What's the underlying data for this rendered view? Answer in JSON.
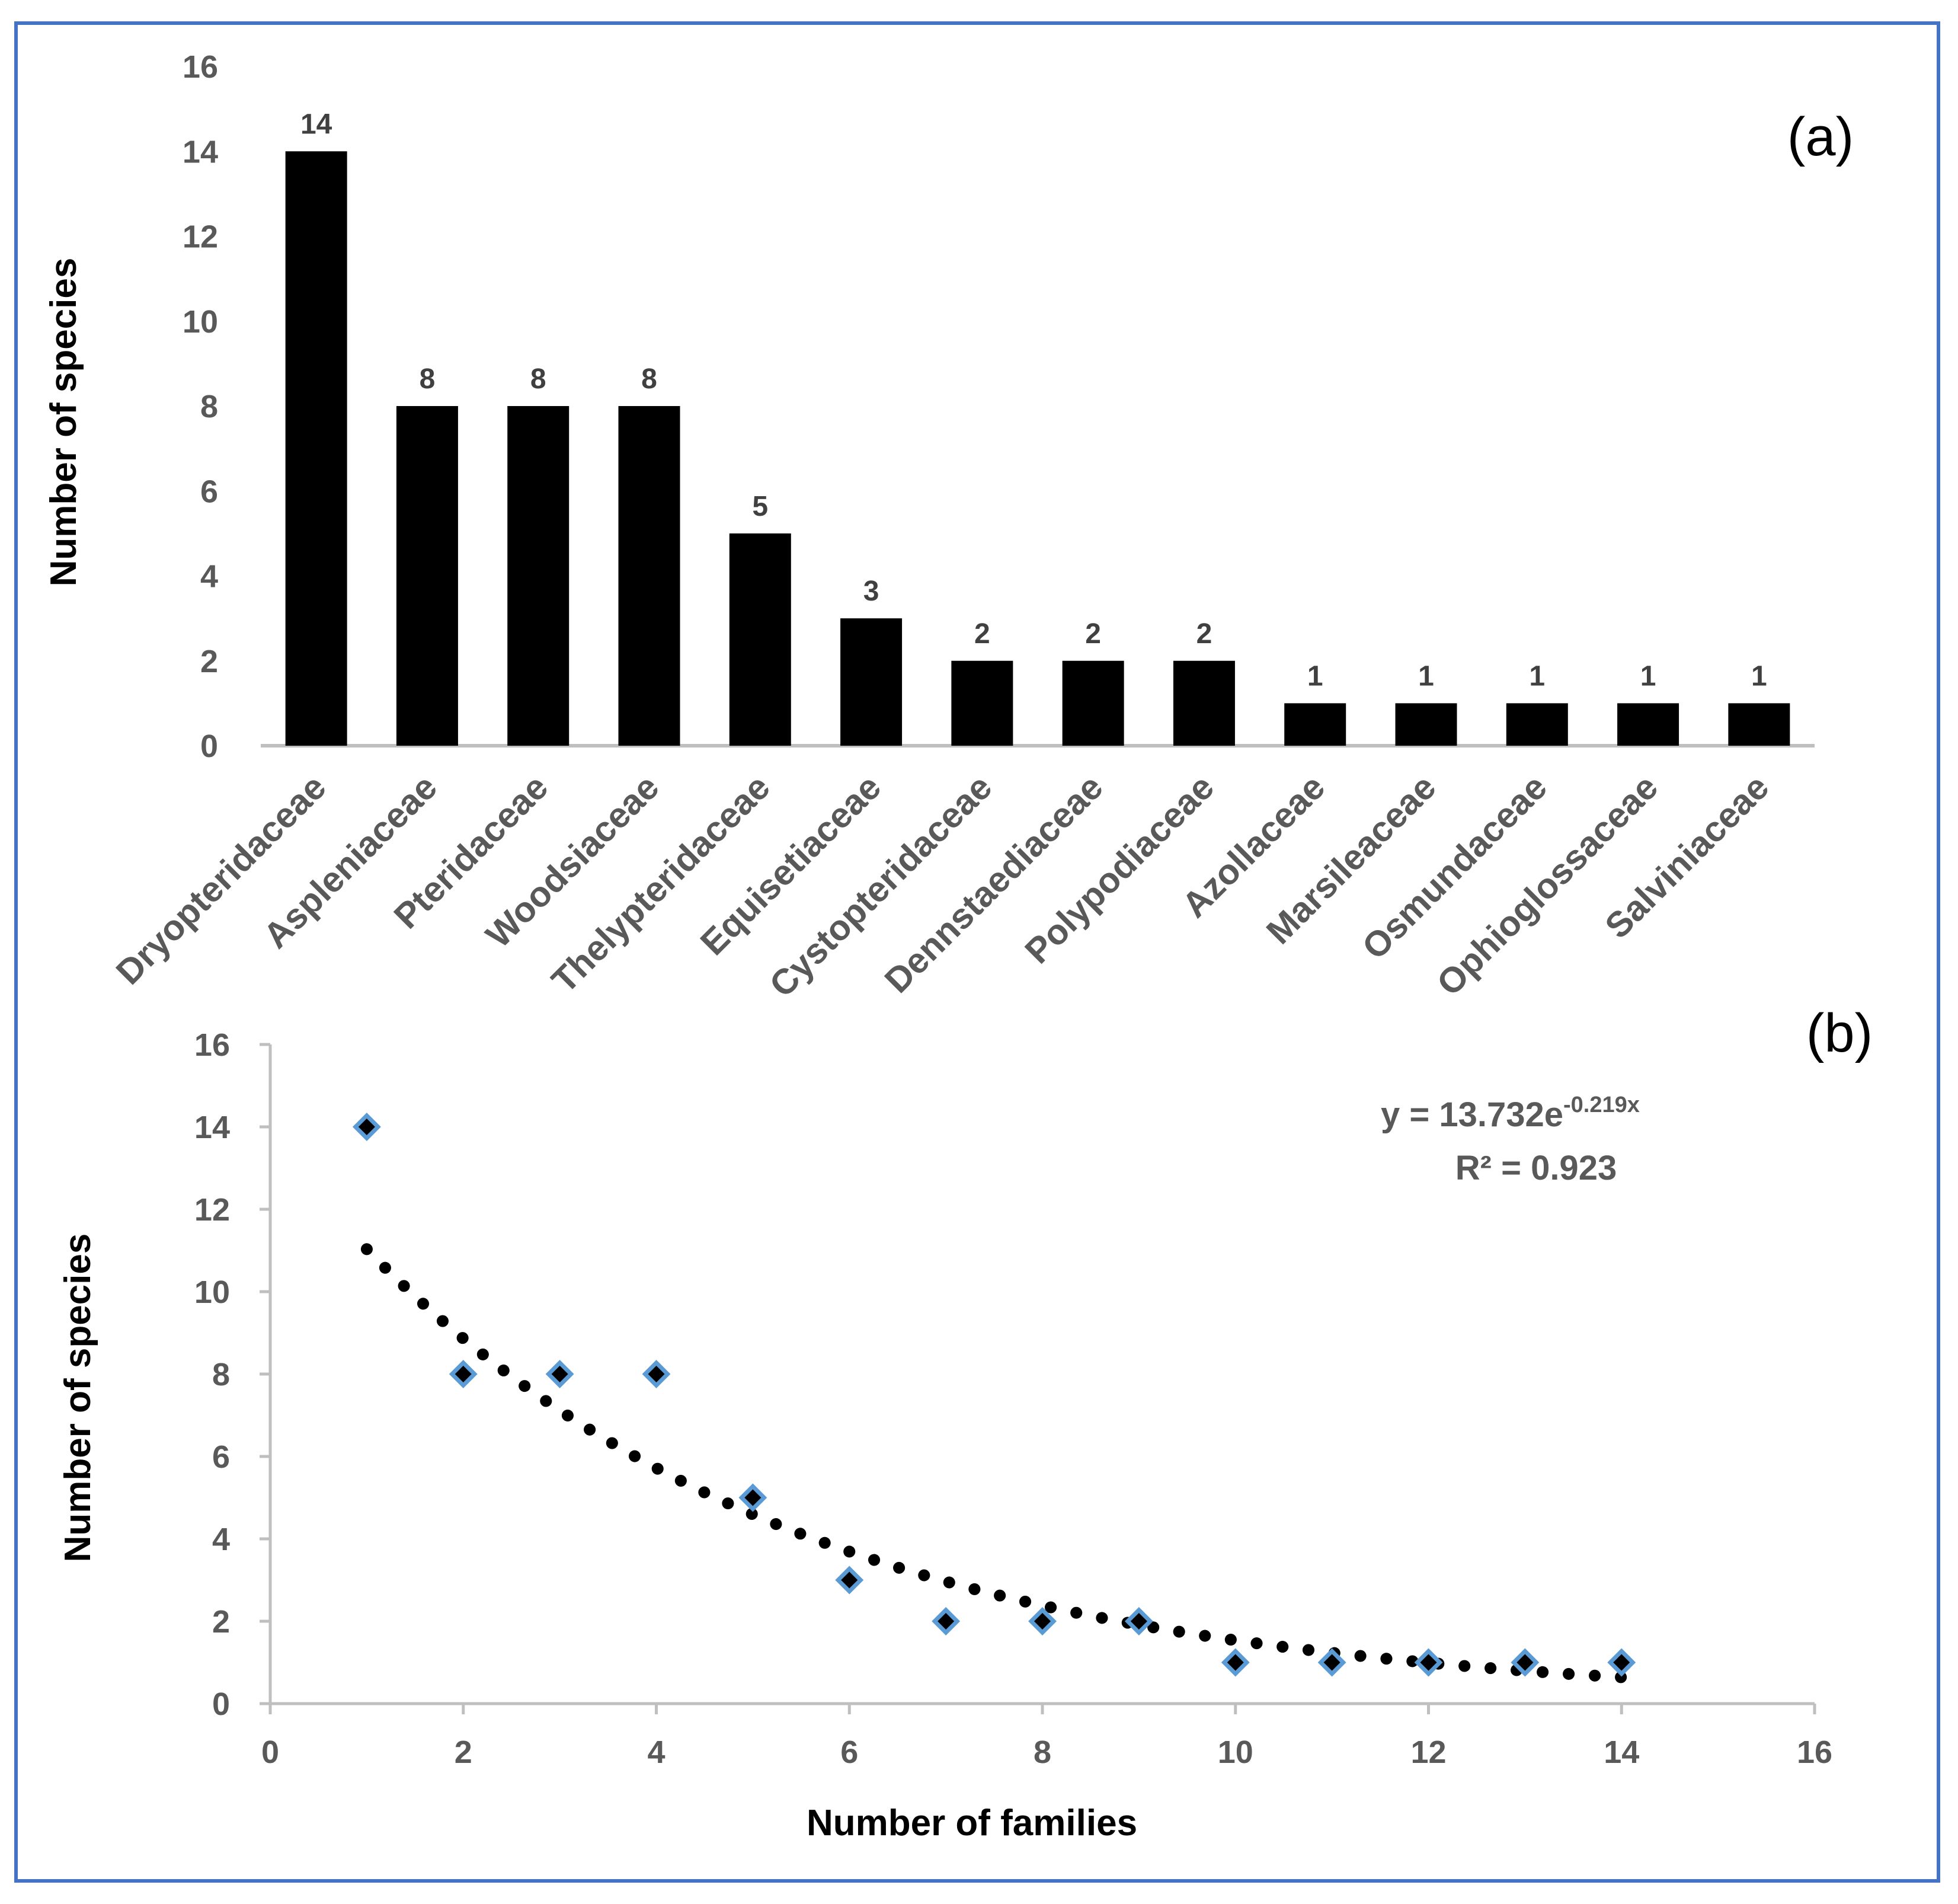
{
  "chart_data": [
    {
      "type": "bar",
      "panel_label": "(a)",
      "ylabel": "Number of species",
      "ylim": [
        0,
        16
      ],
      "yticks": [
        0,
        2,
        4,
        6,
        8,
        10,
        12,
        14,
        16
      ],
      "categories": [
        "Dryopteridaceae",
        "Aspleniaceae",
        "Pteridaceae",
        "Woodsiaceae",
        "Thelypteridaceae",
        "Equisetiaceae",
        "Cystopteridaceae",
        "Dennstaediaceae",
        "Polypodiaceae",
        "Azollaceae",
        "Marsileaceae",
        "Osmundaceae",
        "Ophioglossaceae",
        "Salviniaceae"
      ],
      "values": [
        14,
        8,
        8,
        8,
        5,
        3,
        2,
        2,
        2,
        1,
        1,
        1,
        1,
        1
      ],
      "data_labels": true,
      "bar_color": "#000000"
    },
    {
      "type": "scatter",
      "panel_label": "(b)",
      "xlabel": "Number of families",
      "ylabel": "Number of species",
      "xlim": [
        0,
        16
      ],
      "ylim": [
        0,
        16
      ],
      "xticks": [
        0,
        2,
        4,
        6,
        8,
        10,
        12,
        14,
        16
      ],
      "yticks": [
        0,
        2,
        4,
        6,
        8,
        10,
        12,
        14,
        16
      ],
      "x": [
        1,
        2,
        3,
        4,
        5,
        6,
        7,
        8,
        9,
        10,
        11,
        12,
        13,
        14
      ],
      "y": [
        14,
        8,
        8,
        8,
        5,
        3,
        2,
        2,
        2,
        1,
        1,
        1,
        1,
        1
      ],
      "marker": "diamond",
      "marker_fill": "#000000",
      "marker_edge": "#5b9bd5",
      "trendline": {
        "type": "exponential",
        "a": 13.732,
        "b": -0.219,
        "x_range": [
          1,
          14
        ],
        "style": "dotted"
      },
      "annotations": {
        "equation_main": "y = 13.732e",
        "equation_exp": "-0.219x",
        "r2": "R² = 0.923"
      }
    }
  ]
}
